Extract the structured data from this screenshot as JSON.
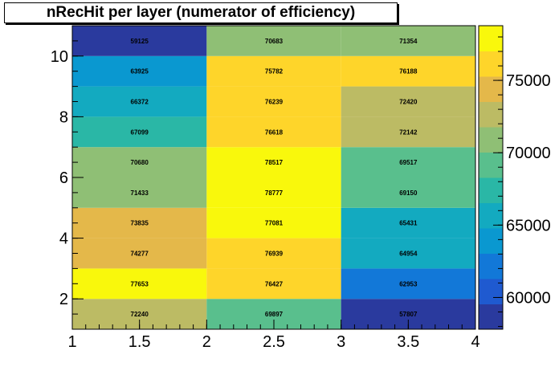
{
  "chart_data": {
    "type": "heatmap",
    "title": "nRecHit per layer (numerator of efficiency)",
    "xlabel": "",
    "ylabel": "",
    "x_edges": [
      1,
      2,
      3,
      4
    ],
    "y_edges": [
      1,
      2,
      3,
      4,
      5,
      6,
      7,
      8,
      9,
      10,
      11
    ],
    "xlim": [
      1,
      4
    ],
    "ylim": [
      1,
      11
    ],
    "x_ticks": [
      "1",
      "1.5",
      "2",
      "2.5",
      "3",
      "3.5",
      "4"
    ],
    "y_ticks": [
      "2",
      "4",
      "6",
      "8",
      "10"
    ],
    "z_range": [
      57807,
      78777
    ],
    "colorbar_ticks": [
      "60000",
      "65000",
      "70000",
      "75000"
    ],
    "rows": [
      [
        72240,
        69897,
        57807
      ],
      [
        77653,
        76427,
        62953
      ],
      [
        74277,
        76939,
        64954
      ],
      [
        73835,
        77081,
        65431
      ],
      [
        71433,
        78777,
        69150
      ],
      [
        70680,
        78517,
        69517
      ],
      [
        67099,
        76618,
        72142
      ],
      [
        66372,
        76239,
        72420
      ],
      [
        63925,
        75782,
        76188
      ],
      [
        59125,
        70683,
        71354
      ]
    ],
    "palette": [
      "#2a3a9e",
      "#1f5ad0",
      "#1278d8",
      "#0a98d0",
      "#13aac0",
      "#2ab7a6",
      "#59bf8d",
      "#8fbf75",
      "#bcbb64",
      "#e4b84a",
      "#fed52a",
      "#f9f80c"
    ]
  }
}
